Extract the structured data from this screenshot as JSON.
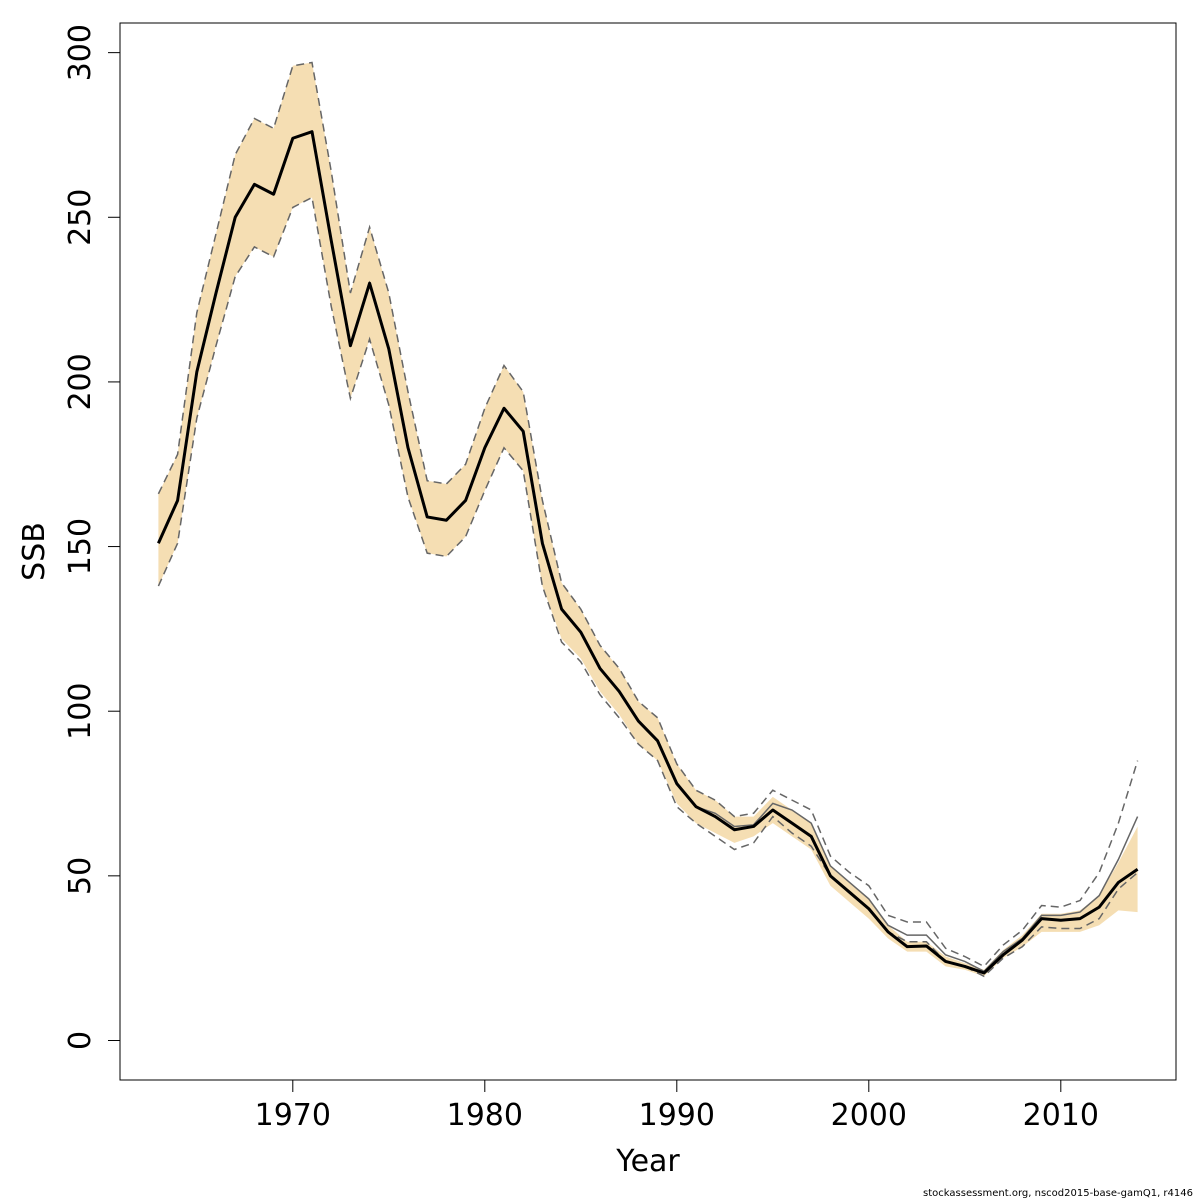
{
  "chart_data": {
    "type": "line",
    "xlabel": "Year",
    "ylabel": "SSB",
    "xlim": [
      1961.0,
      2016.0
    ],
    "ylim": [
      -12,
      309
    ],
    "xticks": [
      1970,
      1980,
      1990,
      2000,
      2010
    ],
    "yticks": [
      0,
      50,
      100,
      150,
      200,
      250,
      300
    ],
    "colors": {
      "band": "#f5deb3",
      "estimate": "#000000",
      "alternate": "#666666",
      "alternate_ci": "#666666"
    },
    "x": [
      1963,
      1964,
      1965,
      1966,
      1967,
      1968,
      1969,
      1970,
      1971,
      1972,
      1973,
      1974,
      1975,
      1976,
      1977,
      1978,
      1979,
      1980,
      1981,
      1982,
      1983,
      1984,
      1985,
      1986,
      1987,
      1988,
      1989,
      1990,
      1991,
      1992,
      1993,
      1994,
      1995,
      1996,
      1997,
      1998,
      1999,
      2000,
      2001,
      2002,
      2003,
      2004,
      2005,
      2006,
      2007,
      2008,
      2009,
      2010,
      2011,
      2012,
      2013,
      2014
    ],
    "series": [
      {
        "role": "estimate",
        "values": [
          151,
          164,
          203,
          227,
          250,
          260,
          257,
          274,
          276,
          243,
          211,
          230,
          210,
          180,
          159,
          158,
          164,
          180,
          192,
          185,
          151,
          131,
          124,
          113,
          106,
          97,
          91,
          78,
          71,
          68,
          64,
          65,
          70,
          66,
          62,
          50,
          45,
          40,
          33,
          28.5,
          28.7,
          24,
          22.5,
          20.5,
          26,
          30.5,
          37,
          36.5,
          37,
          40.5,
          48,
          52
        ]
      },
      {
        "role": "lower",
        "values": [
          138,
          151,
          189,
          211,
          232,
          241,
          238,
          253,
          256,
          223,
          195,
          213,
          193,
          165,
          148,
          147,
          153,
          167,
          180,
          173,
          138,
          122,
          116,
          106,
          99,
          90,
          85,
          72,
          66,
          63,
          60,
          62,
          66,
          62,
          58,
          47,
          42,
          37,
          31,
          27,
          27,
          22.5,
          21.5,
          19.5,
          25,
          28.5,
          33,
          33,
          33,
          35,
          39.5,
          39
        ]
      },
      {
        "role": "upper",
        "values": [
          166,
          178,
          221,
          245,
          269,
          280,
          277,
          296,
          297,
          264,
          227,
          247,
          227,
          197,
          170,
          169,
          175,
          192,
          205,
          197,
          164,
          139,
          131,
          120,
          113,
          103,
          98,
          84,
          76,
          73,
          68,
          68,
          74,
          70,
          66,
          53,
          48,
          43,
          35,
          30,
          30,
          25.5,
          23.5,
          21.5,
          27.5,
          32,
          38.5,
          38.5,
          39.5,
          44,
          54,
          65
        ]
      },
      {
        "role": "alternate",
        "values": [
          151,
          164,
          203,
          227,
          250,
          260,
          257,
          274,
          276,
          243,
          211,
          230,
          210,
          180,
          159,
          158,
          164,
          180,
          192,
          185,
          151,
          131,
          124,
          113,
          106,
          97,
          91,
          78,
          71,
          69,
          65,
          65.5,
          72,
          70,
          66,
          53,
          48,
          43,
          35,
          32,
          32,
          26,
          24,
          21,
          27,
          31,
          38,
          38,
          39,
          44,
          55,
          68
        ]
      },
      {
        "role": "alternate-lower",
        "values": [
          138,
          151,
          189,
          211,
          232,
          241,
          238,
          253,
          256,
          223,
          195,
          213,
          193,
          165,
          148,
          147,
          153,
          167,
          180,
          173,
          138,
          121,
          115,
          105,
          98,
          90,
          85,
          71,
          66,
          62,
          58,
          60,
          68,
          63,
          59,
          50,
          45,
          40,
          33,
          30,
          30,
          24,
          22.5,
          19.5,
          25,
          28.5,
          34.5,
          34,
          34,
          37,
          46,
          51
        ]
      },
      {
        "role": "alternate-upper",
        "values": [
          166,
          178,
          221,
          245,
          269,
          280,
          277,
          296,
          297,
          264,
          227,
          247,
          227,
          197,
          170,
          169,
          175,
          192,
          205,
          197,
          164,
          139,
          131,
          120,
          113,
          103,
          98,
          84,
          76,
          73,
          68,
          69,
          76,
          73,
          70,
          56,
          51,
          47,
          38,
          36,
          36,
          28,
          25.5,
          22.5,
          29,
          33.5,
          41,
          40.5,
          42.5,
          51,
          66,
          85
        ]
      }
    ]
  },
  "footnote": "stockassessment.org, nscod2015-base-gamQ1, r4146"
}
